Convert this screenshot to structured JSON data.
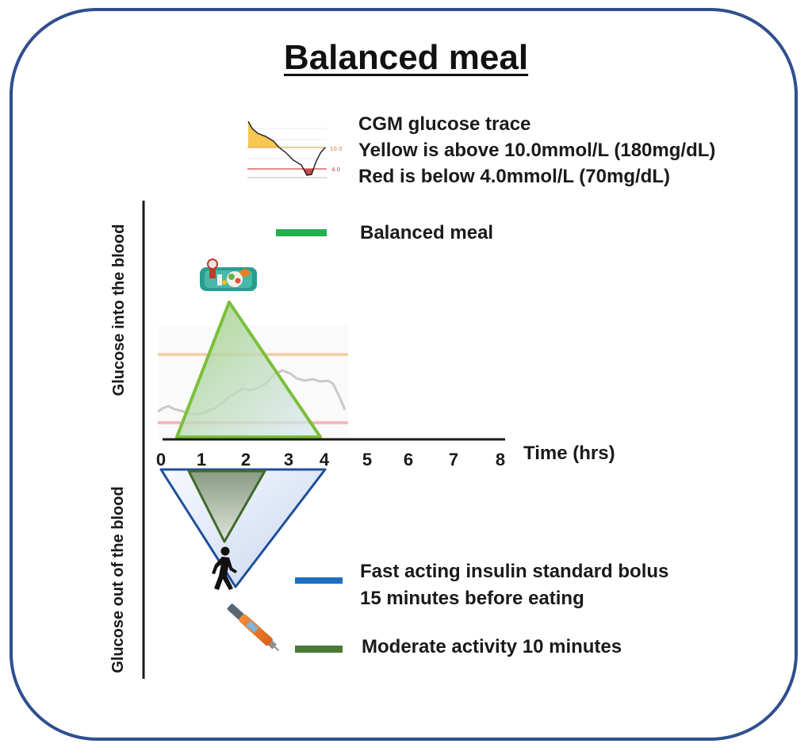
{
  "title": "Balanced meal",
  "cgm_legend": {
    "line1": "CGM glucose trace",
    "line2": "Yellow is above 10.0mmol/L (180mg/dL)",
    "line3": "Red is below 4.0mmol/L (70mg/dL)",
    "thumb_high_label": "10.0",
    "thumb_low_label": "4.0"
  },
  "legend": {
    "meal": {
      "label": "Balanced meal",
      "color": "#22b04b"
    },
    "insulin": {
      "label_line1": "Fast acting insulin standard bolus",
      "label_line2": "15 minutes before eating",
      "color": "#1f6fc0"
    },
    "activity": {
      "label": "Moderate activity 10 minutes",
      "color": "#4a7a35"
    }
  },
  "axis": {
    "upper_label": "Glucose into the blood",
    "lower_label": "Glucose out of the blood",
    "x_label": "Time (hrs)",
    "ticks": [
      "0",
      "1",
      "2",
      "3",
      "4",
      "5",
      "6",
      "7",
      "8"
    ]
  },
  "icons": {
    "food": "food-tray-icon",
    "walker": "walking-person-icon",
    "pen": "insulin-pen-icon"
  },
  "colors": {
    "frame": "#2f4f8f",
    "high_band": "#f6c07a",
    "low_band": "#e45a5a"
  }
}
